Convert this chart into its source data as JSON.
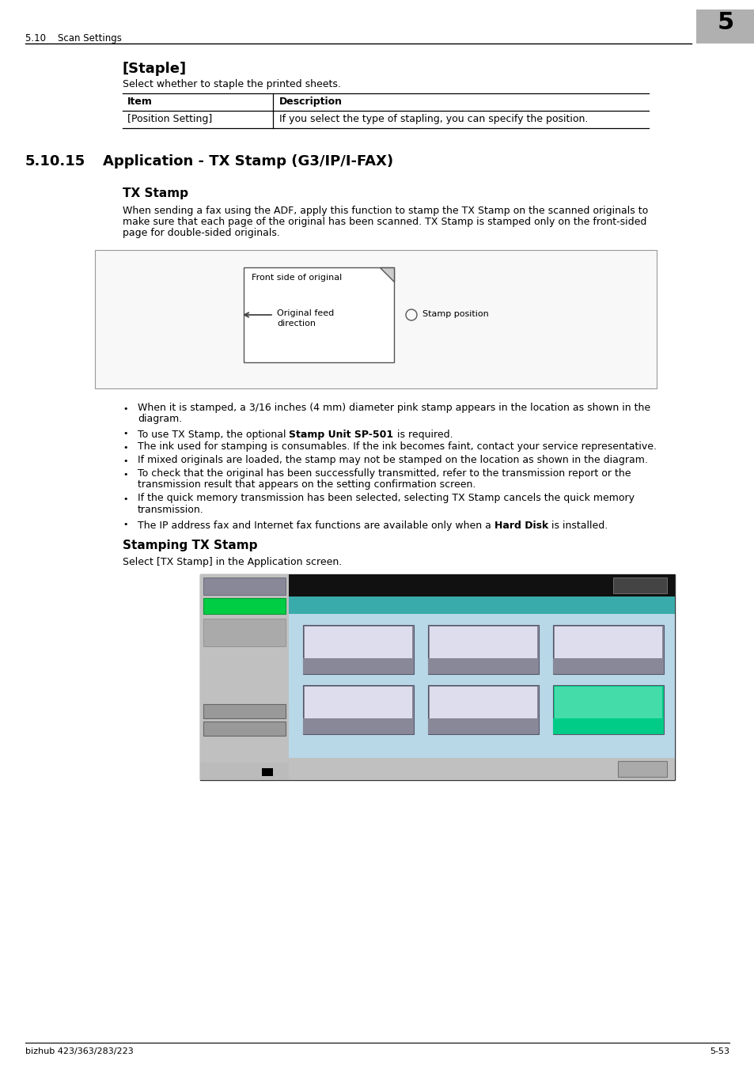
{
  "page_bg": "#ffffff",
  "header_text": "5.10    Scan Settings",
  "header_number": "5",
  "header_number_bg": "#b0b0b0",
  "footer_left": "bizhub 423/363/283/223",
  "footer_right": "5-53",
  "section_title": "[Staple]",
  "section_desc": "Select whether to staple the printed sheets.",
  "table_header_item": "Item",
  "table_header_desc": "Description",
  "table_row_item": "[Position Setting]",
  "table_row_desc": "If you select the type of stapling, you can specify the position.",
  "section2_number": "5.10.15",
  "section2_title": "Application - TX Stamp (G3/IP/I-FAX)",
  "subsection_title": "TX Stamp",
  "subsection_desc_lines": [
    "When sending a fax using the ADF, apply this function to stamp the TX Stamp on the scanned originals to",
    "make sure that each page of the original has been scanned. TX Stamp is stamped only on the front-sided",
    "page for double-sided originals."
  ],
  "diagram_label1": "Front side of original",
  "diagram_label2_line1": "Original feed",
  "diagram_label2_line2": "direction",
  "diagram_label3": "Stamp position",
  "bullets": [
    [
      "When it is stamped, a 3/16 inches (4 mm) diameter pink stamp appears in the location as shown in the",
      "diagram."
    ],
    [
      "To use TX Stamp, the optional ",
      "Stamp Unit SP-501",
      " is required."
    ],
    [
      "The ink used for stamping is consumables. If the ink becomes faint, contact your service representative."
    ],
    [
      "If mixed originals are loaded, the stamp may not be stamped on the location as shown in the diagram."
    ],
    [
      "To check that the original has been successfully transmitted, refer to the transmission report or the",
      "transmission result that appears on the setting confirmation screen."
    ],
    [
      "If the quick memory transmission has been selected, selecting TX Stamp cancels the quick memory",
      "transmission."
    ],
    [
      "The IP address fax and Internet fax functions are available only when a ",
      "Hard Disk",
      " is installed."
    ]
  ],
  "bullet_bold_word_idx": [
    null,
    1,
    null,
    null,
    null,
    null,
    1
  ],
  "subsection2_title": "Stamping TX Stamp",
  "subsection2_desc": "Select [TX Stamp] in the Application screen."
}
